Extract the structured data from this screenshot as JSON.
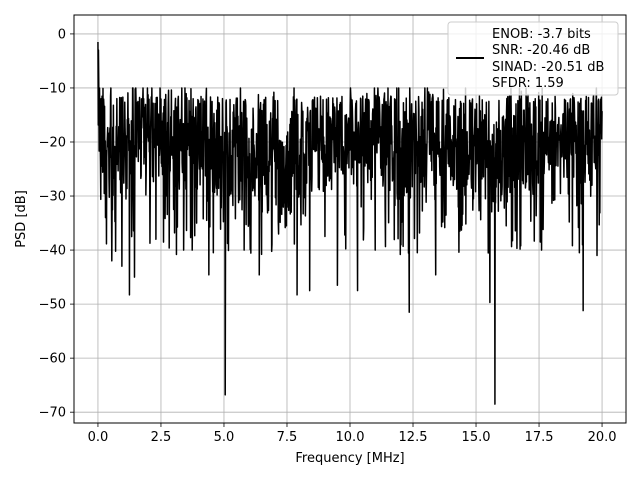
{
  "chart_data": {
    "type": "line",
    "xlabel": "Frequency [MHz]",
    "ylabel": "PSD [dB]",
    "xlim": [
      -0.95,
      20.95
    ],
    "ylim": [
      -72,
      3.5
    ],
    "xticks": [
      0.0,
      2.5,
      5.0,
      7.5,
      10.0,
      12.5,
      15.0,
      17.5,
      20.0
    ],
    "xtick_labels": [
      "0.0",
      "2.5",
      "5.0",
      "7.5",
      "10.0",
      "12.5",
      "15.0",
      "17.5",
      "20.0"
    ],
    "yticks": [
      0,
      -10,
      -20,
      -30,
      -40,
      -50,
      -60,
      -70
    ],
    "ytick_labels": [
      "0",
      "−10",
      "−20",
      "−30",
      "−40",
      "−50",
      "−60",
      "−70"
    ],
    "grid": true,
    "legend_position": "top-right",
    "legend_lines": [
      "ENOB: -3.7 bits",
      "SNR: -20.46 dB",
      "SINAD: -20.51 dB",
      "SFDR: 1.59"
    ],
    "series_color": "#000000",
    "grid_color": "#b0b0b0",
    "series": [
      {
        "x_start": 0.0,
        "x_end": 20.0,
        "noise_floor_mean_db": -21,
        "noise_floor_spread_db": 9,
        "notable_points": [
          {
            "x": 0.0,
            "y": -1.5
          },
          {
            "x": 0.02,
            "y": -3.0
          },
          {
            "x": 0.3,
            "y": -34
          },
          {
            "x": 0.55,
            "y": -42
          },
          {
            "x": 0.95,
            "y": -43
          },
          {
            "x": 1.25,
            "y": -48.3
          },
          {
            "x": 1.45,
            "y": -45
          },
          {
            "x": 2.3,
            "y": -38
          },
          {
            "x": 3.4,
            "y": -40
          },
          {
            "x": 4.4,
            "y": -44.6
          },
          {
            "x": 5.05,
            "y": -66.8
          },
          {
            "x": 5.8,
            "y": -40
          },
          {
            "x": 6.4,
            "y": -44.6
          },
          {
            "x": 7.9,
            "y": -48.3
          },
          {
            "x": 8.4,
            "y": -47.5
          },
          {
            "x": 9.5,
            "y": -46.5
          },
          {
            "x": 10.3,
            "y": -47.5
          },
          {
            "x": 11.0,
            "y": -40
          },
          {
            "x": 12.35,
            "y": -51.5
          },
          {
            "x": 13.4,
            "y": -44.6
          },
          {
            "x": 15.55,
            "y": -49.7
          },
          {
            "x": 15.75,
            "y": -68.5
          },
          {
            "x": 17.6,
            "y": -40
          },
          {
            "x": 19.25,
            "y": -51.2
          },
          {
            "x": 19.8,
            "y": -41
          }
        ]
      }
    ]
  }
}
